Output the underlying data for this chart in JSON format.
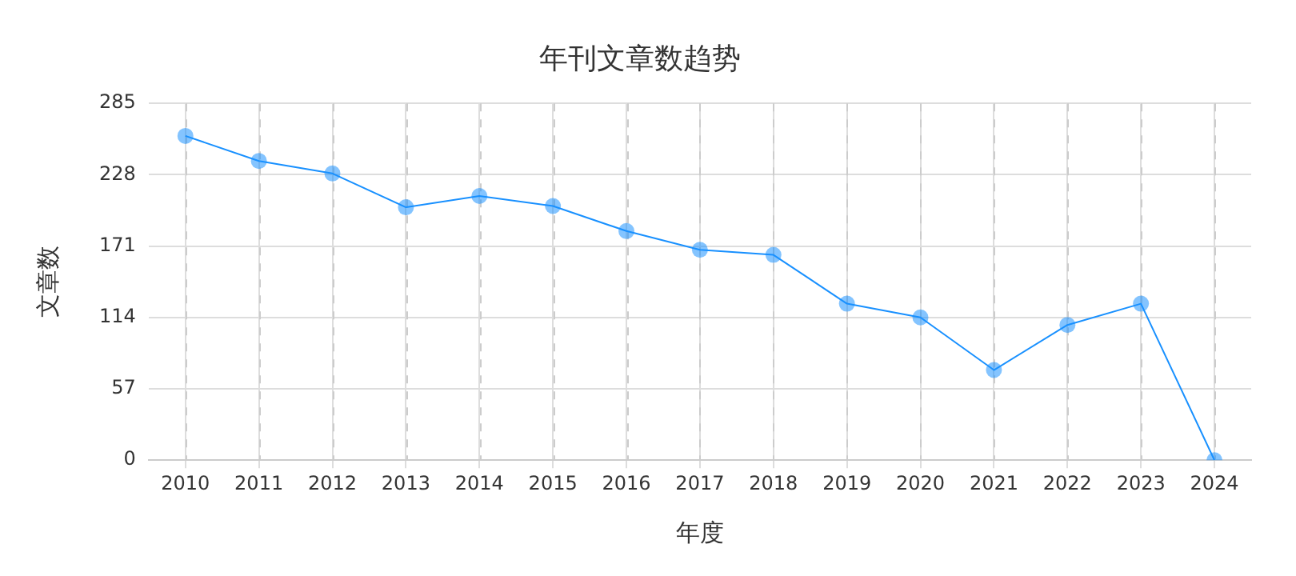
{
  "chart_data": {
    "type": "line",
    "title": "年刊文章数趋势",
    "xlabel": "年度",
    "ylabel": "文章数",
    "categories": [
      "2010",
      "2011",
      "2012",
      "2013",
      "2014",
      "2015",
      "2016",
      "2017",
      "2018",
      "2019",
      "2020",
      "2021",
      "2022",
      "2023",
      "2024"
    ],
    "series": [
      {
        "color": "#1890ff",
        "values": [
          259,
          239,
          229,
          202,
          211,
          203,
          183,
          168,
          164,
          125,
          114,
          72,
          108,
          125,
          0
        ]
      }
    ],
    "ylim": [
      0,
      285
    ],
    "yticks": [
      0,
      57,
      114,
      171,
      228,
      285
    ],
    "grid": true,
    "marker": "circle",
    "line_style": "solid",
    "legend": false
  }
}
